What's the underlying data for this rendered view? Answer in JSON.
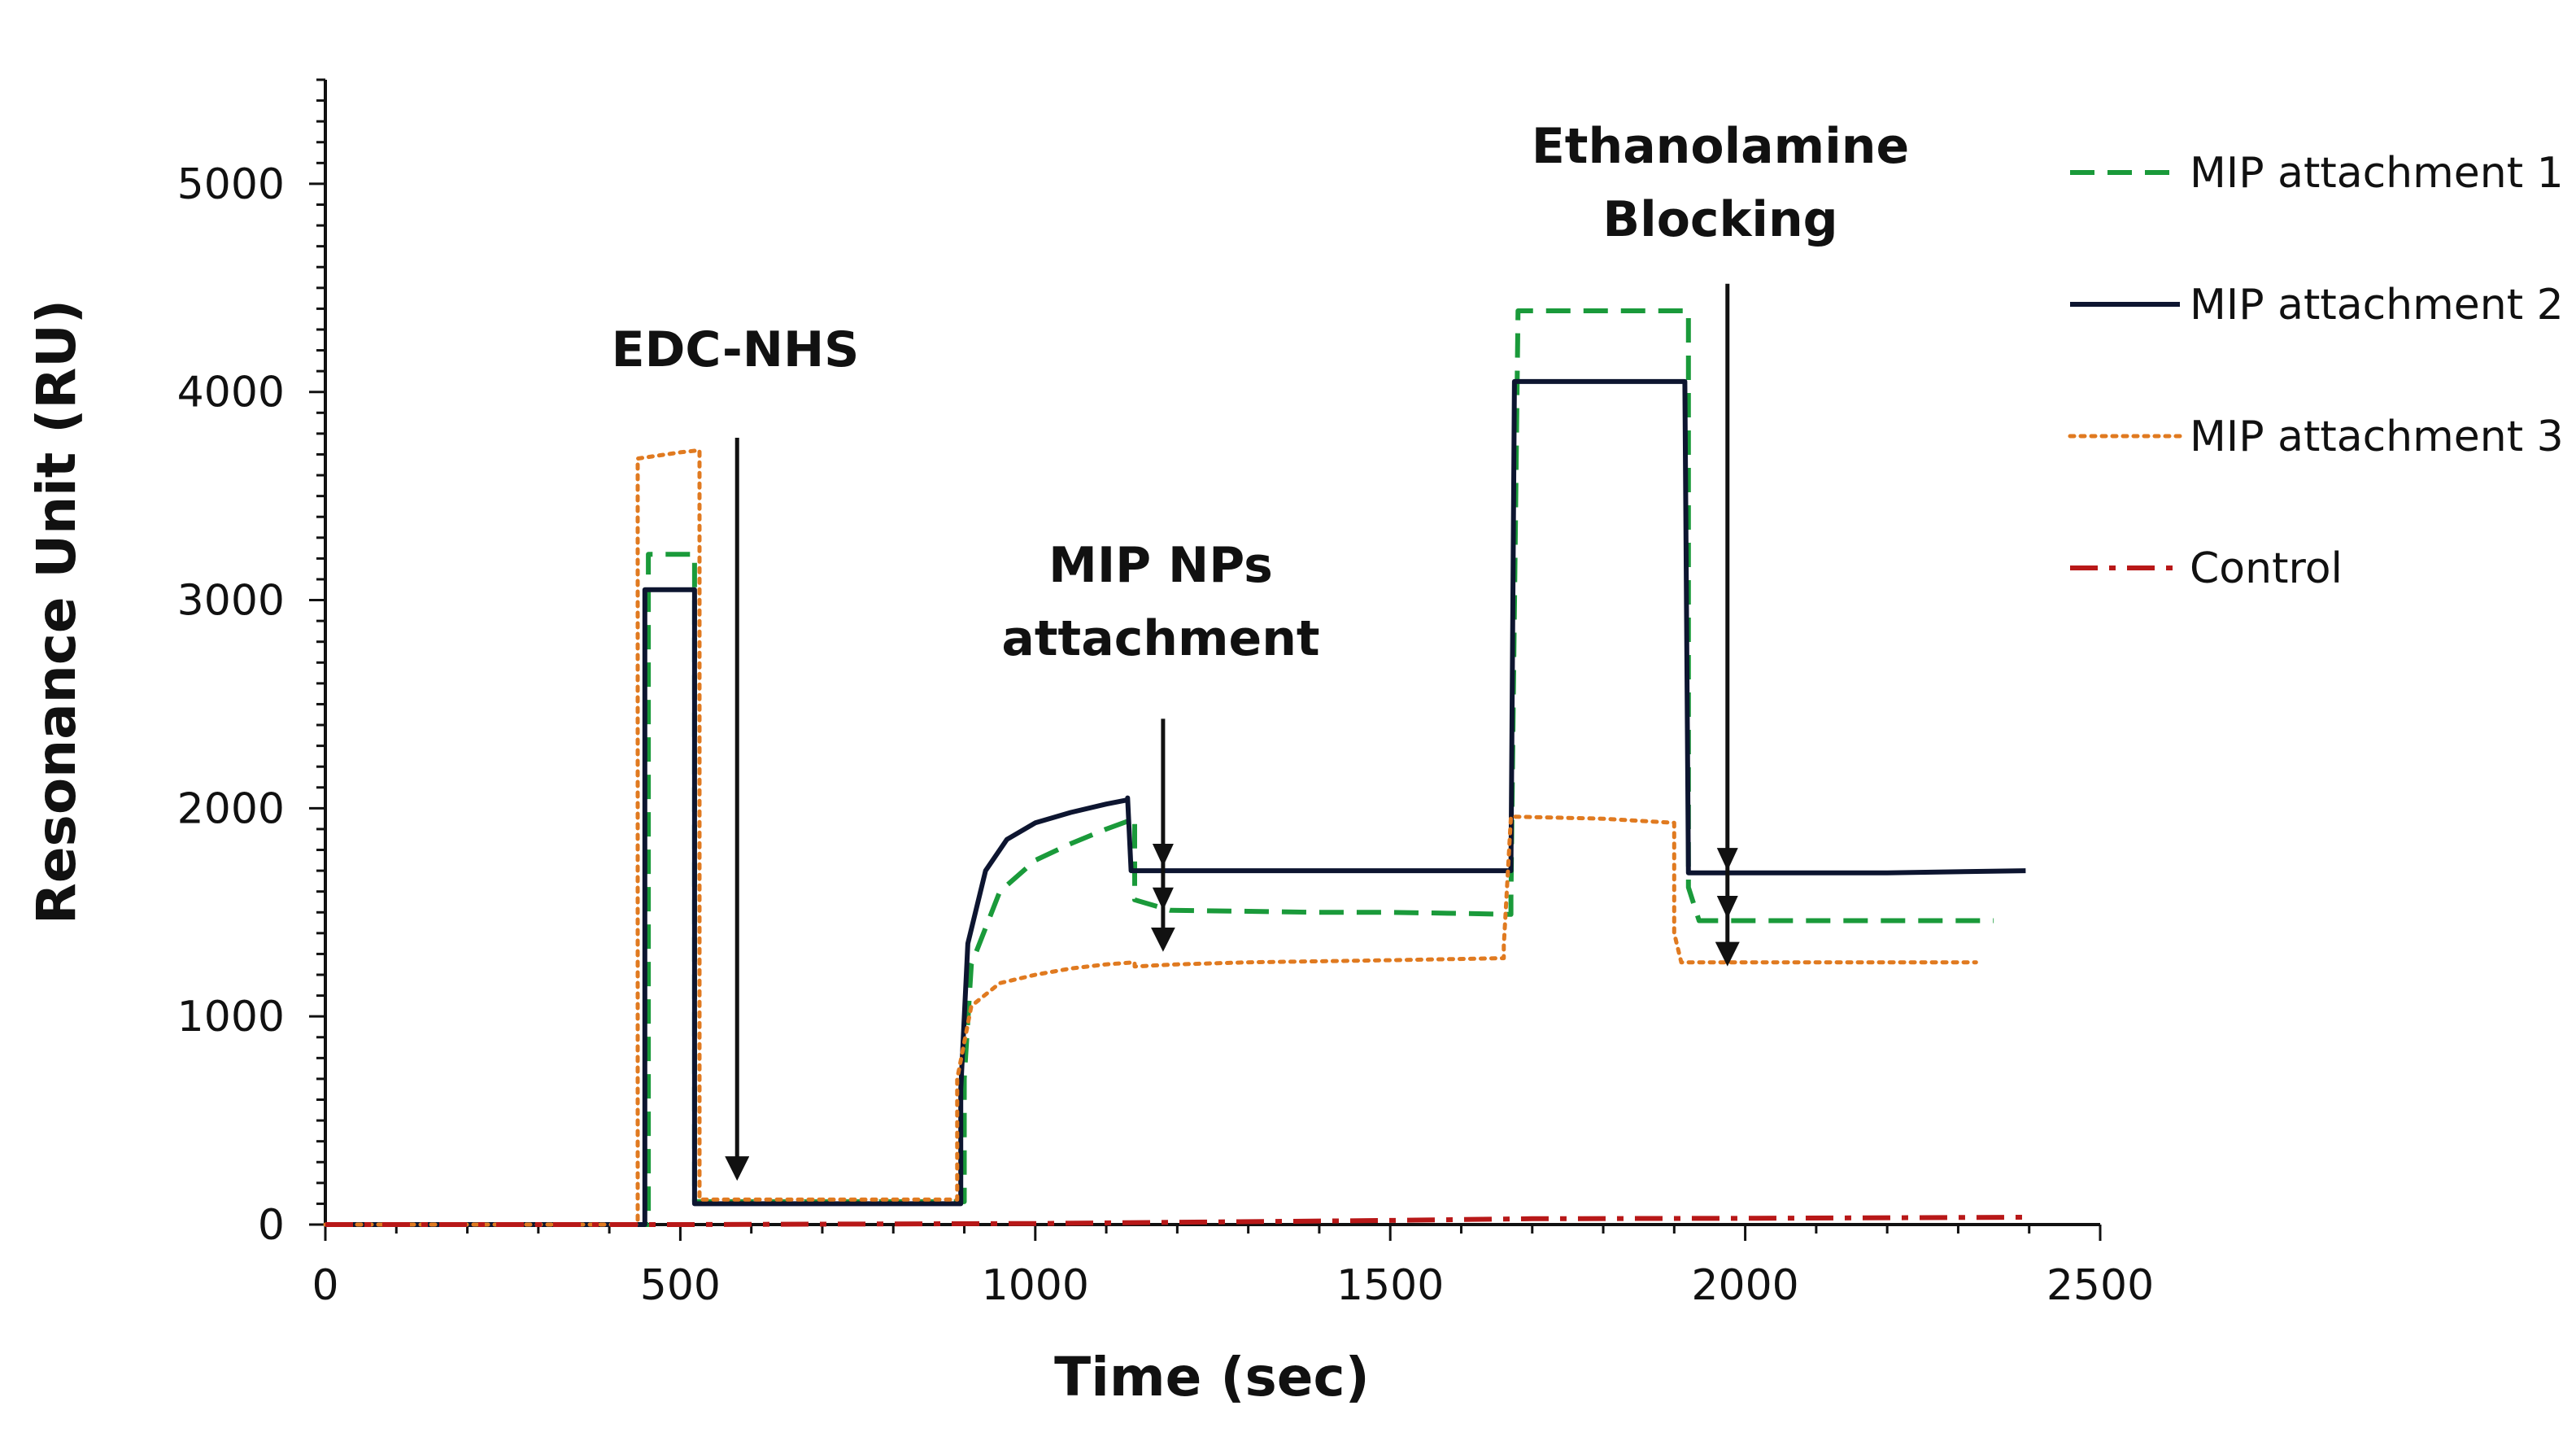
{
  "chart_data": {
    "type": "line",
    "title": "",
    "xlabel": "Time (sec)",
    "ylabel": "Resonance Unit (RU)",
    "xlim": [
      0,
      2500
    ],
    "ylim": [
      0,
      5500
    ],
    "x_ticks": [
      0,
      500,
      1000,
      1500,
      2000,
      2500
    ],
    "y_ticks": [
      0,
      1000,
      2000,
      3000,
      4000,
      5000
    ],
    "grid": false,
    "legend_position": "right",
    "series": [
      {
        "name": "MIP attachment 1",
        "color": "#1a9a3a",
        "style": "dashed",
        "x": [
          0,
          455,
          455,
          520,
          520,
          900,
          900,
          910,
          950,
          1000,
          1050,
          1100,
          1140,
          1140,
          1190,
          1300,
          1400,
          1500,
          1600,
          1670,
          1670,
          1680,
          1920,
          1920,
          1935,
          2000,
          2100,
          2200,
          2350
        ],
        "y": [
          0,
          0,
          3220,
          3220,
          110,
          110,
          700,
          1250,
          1600,
          1750,
          1830,
          1900,
          1950,
          1560,
          1510,
          1505,
          1500,
          1500,
          1495,
          1490,
          1570,
          4390,
          4390,
          1620,
          1460,
          1460,
          1460,
          1460,
          1460
        ]
      },
      {
        "name": "MIP attachment 2",
        "color": "#0d1530",
        "style": "solid",
        "x": [
          0,
          450,
          450,
          520,
          520,
          895,
          895,
          905,
          930,
          960,
          1000,
          1050,
          1100,
          1130,
          1130,
          1135,
          1300,
          1500,
          1670,
          1670,
          1675,
          1915,
          1915,
          1920,
          2000,
          2200,
          2395
        ],
        "y": [
          0,
          0,
          3050,
          3050,
          100,
          100,
          650,
          1350,
          1700,
          1850,
          1930,
          1980,
          2020,
          2040,
          2050,
          1700,
          1700,
          1700,
          1700,
          1710,
          4050,
          4050,
          4050,
          1690,
          1690,
          1690,
          1700
        ]
      },
      {
        "name": "MIP attachment 3",
        "color": "#e07a20",
        "style": "dotted",
        "x": [
          0,
          440,
          440,
          500,
          527,
          527,
          890,
          890,
          910,
          950,
          1000,
          1050,
          1100,
          1140,
          1140,
          1200,
          1300,
          1500,
          1660,
          1660,
          1670,
          1800,
          1900,
          1900,
          1910,
          2000,
          2150,
          2325
        ],
        "y": [
          0,
          0,
          3680,
          3710,
          3720,
          120,
          120,
          700,
          1050,
          1160,
          1200,
          1230,
          1250,
          1260,
          1240,
          1250,
          1260,
          1270,
          1280,
          1340,
          1960,
          1950,
          1930,
          1400,
          1260,
          1260,
          1260,
          1260
        ]
      },
      {
        "name": "Control",
        "color": "#b81818",
        "style": "dashdot",
        "x": [
          0,
          500,
          1000,
          1500,
          1700,
          2000,
          2395
        ],
        "y": [
          0,
          0,
          5,
          20,
          28,
          30,
          35
        ]
      }
    ],
    "annotations": [
      {
        "lines": [
          "EDC-NHS"
        ],
        "arrow_x": [
          580
        ],
        "arrow_from_y": 3780,
        "arrow_to_y": 230
      },
      {
        "lines": [
          "MIP NPs",
          "attachment"
        ],
        "arrow_x": [
          1180
        ],
        "arrow_from_y": 2430,
        "arrow_to_y": 1330
      },
      {
        "lines": [
          "Ethanolamine",
          "Blocking"
        ],
        "arrow_x": [
          1975
        ],
        "arrow_from_y": 4520,
        "arrow_to_y": 1260
      }
    ]
  }
}
